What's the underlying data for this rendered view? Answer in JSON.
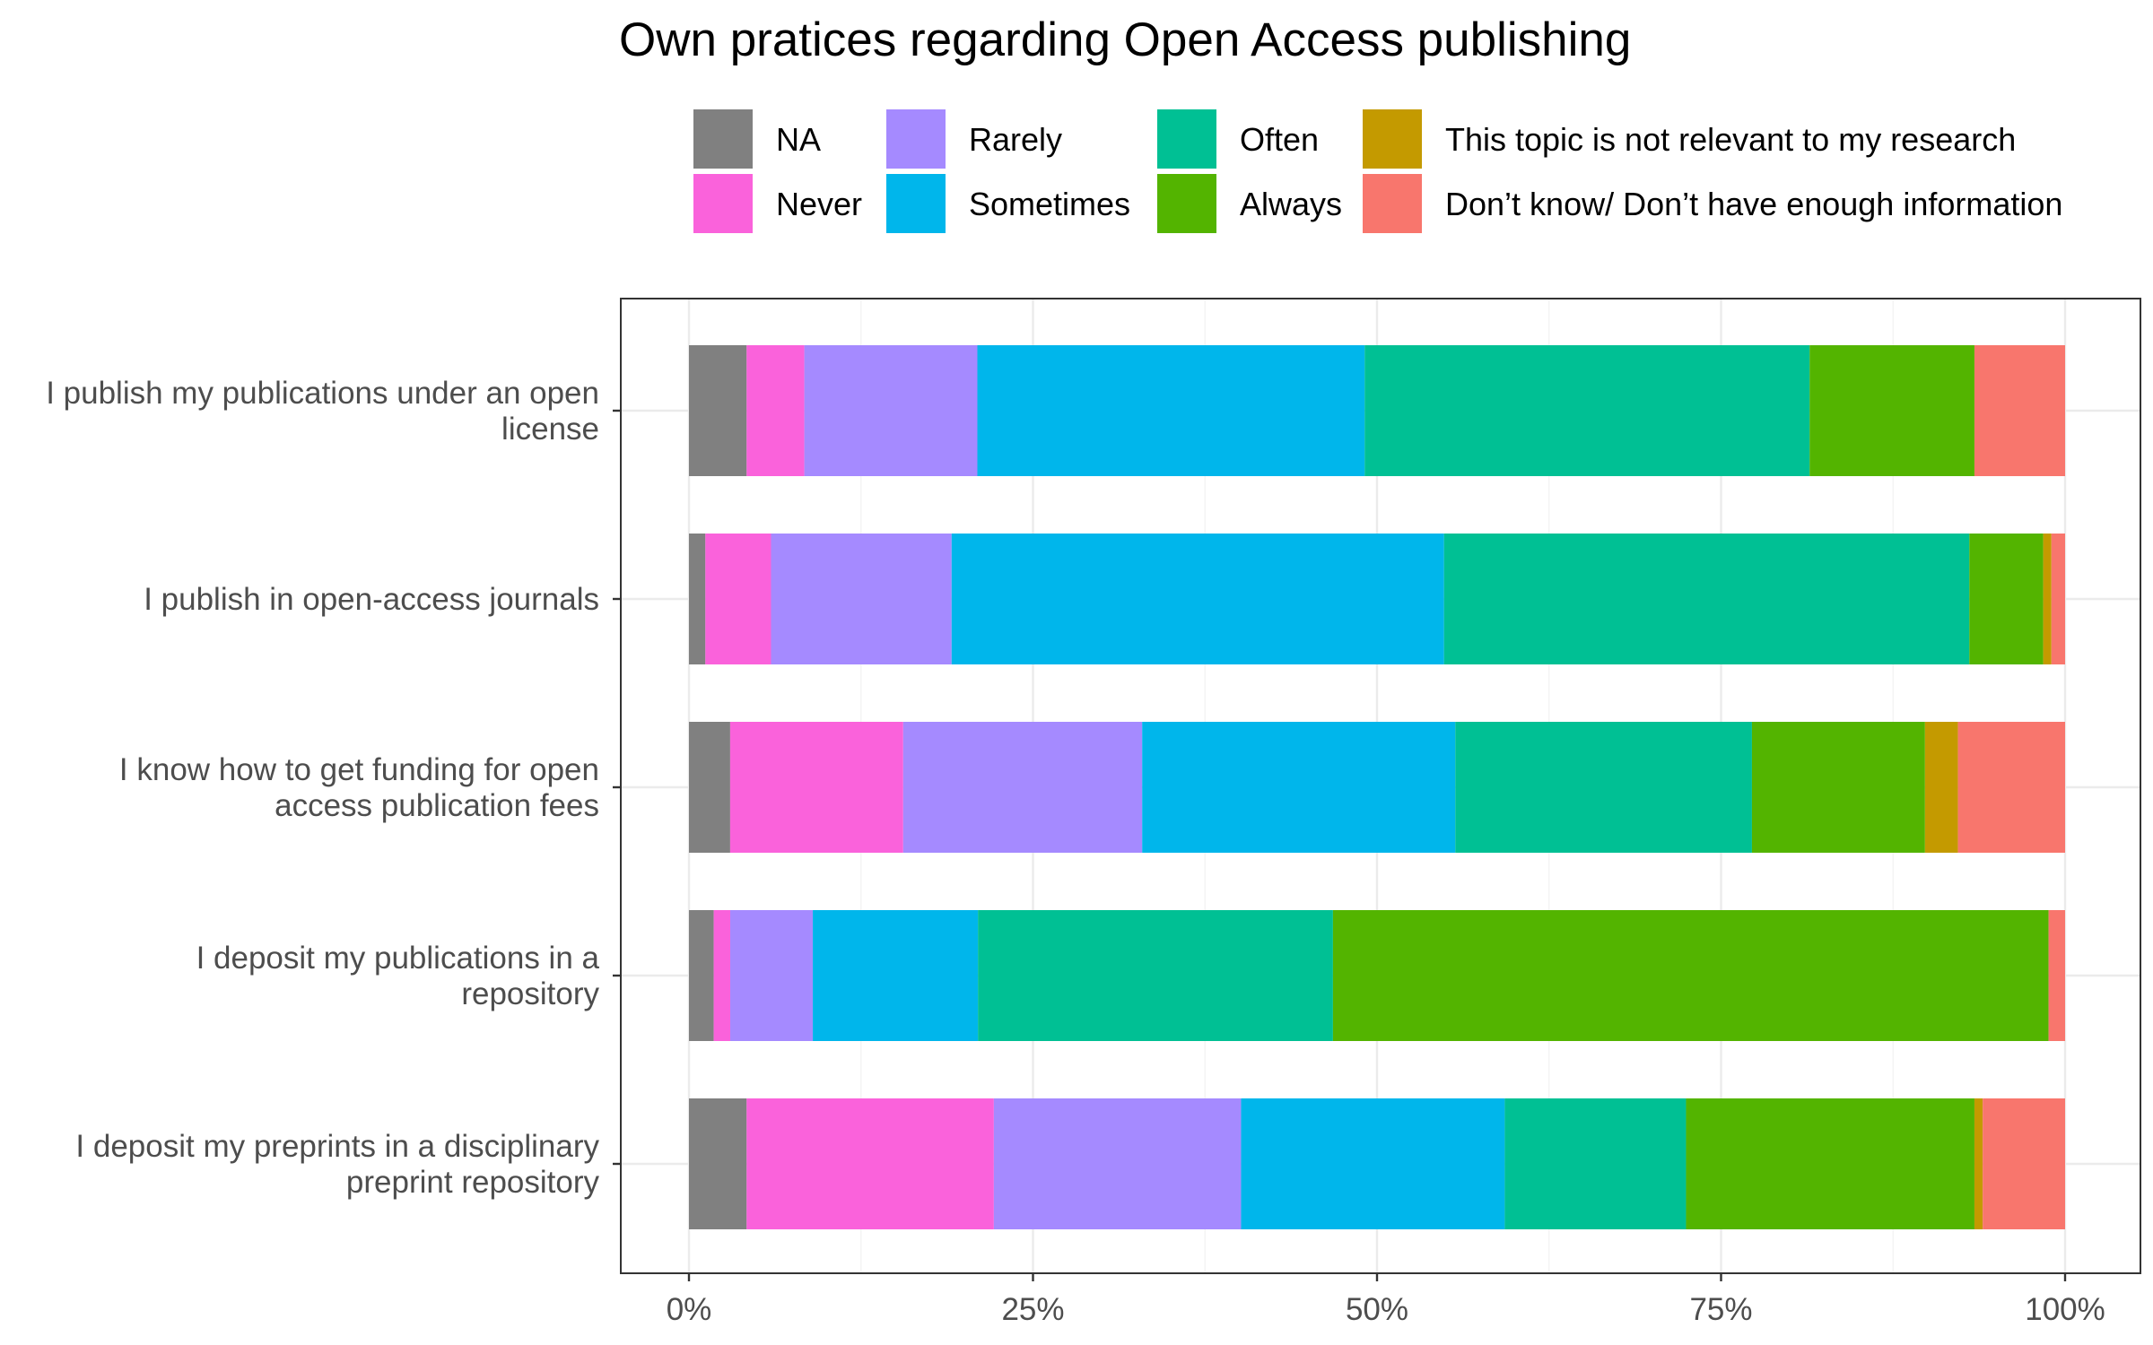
{
  "chart_data": {
    "type": "bar",
    "orientation": "horizontal",
    "stacked": true,
    "title": "Own pratices regarding Open Access publishing",
    "xlabel": "",
    "ylabel": "",
    "xlim": [
      0,
      1
    ],
    "x_ticks": [
      "0%",
      "25%",
      "50%",
      "75%",
      "100%"
    ],
    "grid": true,
    "legend_position": "top",
    "categories": [
      [
        "I publish my publications under an open",
        "license"
      ],
      [
        "I publish in open-access journals"
      ],
      [
        "I know how to get funding for open",
        "access publication fees"
      ],
      [
        "I deposit my publications in a",
        "repository"
      ],
      [
        "I deposit my preprints in a disciplinary",
        "preprint repository"
      ]
    ],
    "series": [
      {
        "name": "NA",
        "color": "#808080",
        "values": [
          0.042,
          0.012,
          0.03,
          0.018,
          0.042
        ]
      },
      {
        "name": "Never",
        "color": "#FA62DB",
        "values": [
          0.042,
          0.048,
          0.126,
          0.012,
          0.18
        ]
      },
      {
        "name": "Rarely",
        "color": "#A58AFF",
        "values": [
          0.126,
          0.132,
          0.174,
          0.06,
          0.18
        ]
      },
      {
        "name": "Sometimes",
        "color": "#00B6EB",
        "values": [
          0.282,
          0.36,
          0.228,
          0.12,
          0.192
        ]
      },
      {
        "name": "Often",
        "color": "#00C094",
        "values": [
          0.324,
          0.384,
          0.216,
          0.258,
          0.132
        ]
      },
      {
        "name": "Always",
        "color": "#53B400",
        "values": [
          0.12,
          0.054,
          0.126,
          0.52,
          0.21
        ]
      },
      {
        "name": "This topic is not relevant to my research",
        "color": "#C49A00",
        "values": [
          0.0,
          0.006,
          0.024,
          0.0,
          0.006
        ]
      },
      {
        "name": "Don’t know/ Don’t have enough information",
        "color": "#F8766D",
        "values": [
          0.066,
          0.01,
          0.078,
          0.012,
          0.06
        ]
      }
    ]
  }
}
